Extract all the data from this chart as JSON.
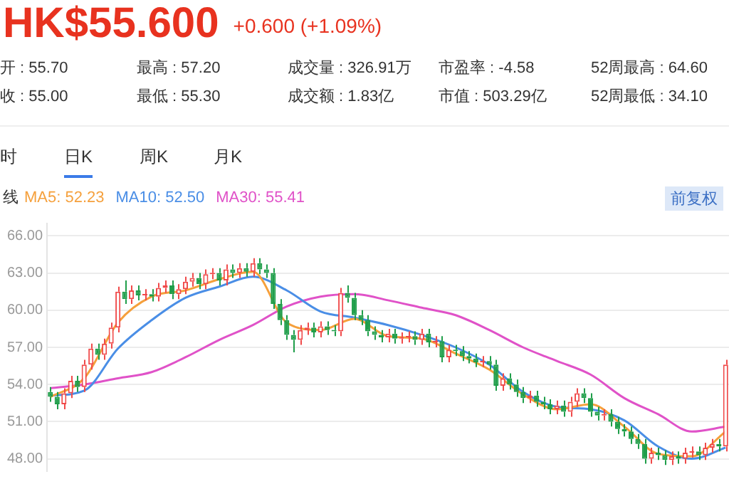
{
  "chart_data": {
    "type": "candlestick",
    "title": "HK$55.600",
    "subtitle": "+0.600 (+1.09%)",
    "annotations": [
      "开 : 55.70",
      "最高 : 57.20",
      "成交量 : 326.91万",
      "市盈率 : -4.58",
      "52周最高 : 64.60",
      "收 : 55.00",
      "最低 : 55.30",
      "成交额 : 1.83亿",
      "市值 : 503.29亿",
      "52周最低 : 34.10",
      "时",
      "日K",
      "周K",
      "月K",
      "前复权"
    ],
    "legend_title": "线",
    "legend": "top left",
    "grid": "y",
    "tick_labels": "y",
    "categories": [
      null,
      null,
      null,
      null,
      null,
      null,
      null,
      null,
      null,
      null,
      null,
      null,
      null,
      null,
      null,
      null,
      null,
      null,
      null,
      null,
      null,
      null,
      null,
      null,
      null,
      null,
      null,
      null,
      null,
      null,
      null,
      null,
      null,
      null,
      null,
      null,
      null,
      null,
      null,
      null,
      null,
      null,
      null,
      null,
      null,
      null,
      null,
      null,
      null,
      null,
      null,
      null,
      null,
      null,
      null,
      null,
      null,
      null,
      null,
      null,
      null,
      null,
      null,
      null,
      null,
      null,
      null,
      null,
      null,
      null,
      null,
      null,
      null,
      null,
      null,
      null,
      null,
      null,
      null,
      null,
      null,
      null,
      null,
      null,
      null,
      null,
      null,
      null,
      null,
      null,
      null,
      null,
      null,
      null,
      null,
      null,
      null,
      null,
      null,
      null,
      null
    ],
    "colors": [
      "#1f9e4a",
      "#1f9e4a",
      "#f04a4a",
      "#f04a4a",
      "#1f9e4a",
      "#f04a4a",
      "#f04a4a",
      "#1f9e4a",
      "#f04a4a",
      "#f04a4a",
      "#f04a4a",
      "#1f9e4a",
      "#f04a4a",
      "#1f9e4a",
      "#f04a4a",
      "#1f9e4a",
      "#f04a4a",
      "#f04a4a",
      "#1f9e4a",
      "#f04a4a",
      "#f04a4a",
      "#f04a4a",
      "#1f9e4a",
      "#f04a4a",
      "#f04a4a",
      "#1f9e4a",
      "#f04a4a",
      "#1f9e4a",
      "#f04a4a",
      "#1f9e4a",
      "#f04a4a",
      "#1f9e4a",
      "#1f9e4a",
      "#1f9e4a",
      "#1f9e4a",
      "#1f9e4a",
      "#1f9e4a",
      "#f04a4a",
      "#f04a4a",
      "#1f9e4a",
      "#f04a4a",
      "#1f9e4a",
      "#1f9e4a",
      "#f04a4a",
      "#1f9e4a",
      "#1f9e4a",
      "#1f9e4a",
      "#1f9e4a",
      "#1f9e4a",
      "#1f9e4a",
      "#f04a4a",
      "#1f9e4a",
      "#f04a4a",
      "#f04a4a",
      "#1f9e4a",
      "#f04a4a",
      "#1f9e4a",
      "#f04a4a",
      "#1f9e4a",
      "#f04a4a",
      "#1f9e4a",
      "#1f9e4a",
      "#1f9e4a",
      "#1f9e4a",
      "#f04a4a",
      "#1f9e4a",
      "#1f9e4a",
      "#f04a4a",
      "#1f9e4a",
      "#1f9e4a",
      "#1f9e4a",
      "#f04a4a",
      "#1f9e4a",
      "#1f9e4a",
      "#1f9e4a",
      "#f04a4a",
      "#1f9e4a",
      "#f04a4a",
      "#f04a4a",
      "#1f9e4a",
      "#1f9e4a",
      "#1f9e4a",
      "#f04a4a",
      "#1f9e4a",
      "#1f9e4a",
      "#1f9e4a",
      "#1f9e4a",
      "#1f9e4a",
      "#1f9e4a",
      "#f04a4a",
      "#1f9e4a",
      "#1f9e4a",
      "#f04a4a",
      "#1f9e4a",
      "#f04a4a",
      "#f04a4a",
      "#1f9e4a",
      "#f04a4a",
      "#f04a4a",
      "#1f9e4a",
      "#f04a4a"
    ],
    "ohlc": [
      [
        53.4,
        53.8,
        52.6,
        53.0
      ],
      [
        53.0,
        53.4,
        52.0,
        52.4
      ],
      [
        52.4,
        53.7,
        52.0,
        53.3
      ],
      [
        53.3,
        54.7,
        52.9,
        54.3
      ],
      [
        54.3,
        54.7,
        53.4,
        53.8
      ],
      [
        53.8,
        56.0,
        53.4,
        55.6
      ],
      [
        55.6,
        57.3,
        55.2,
        56.9
      ],
      [
        56.9,
        57.3,
        56.0,
        56.4
      ],
      [
        56.4,
        57.7,
        56.0,
        57.3
      ],
      [
        57.3,
        59.0,
        56.9,
        58.6
      ],
      [
        58.6,
        61.9,
        58.2,
        61.5
      ],
      [
        61.5,
        62.4,
        60.5,
        60.9
      ],
      [
        60.9,
        62.0,
        60.5,
        61.6
      ],
      [
        61.6,
        62.0,
        60.8,
        61.2
      ],
      [
        61.2,
        61.7,
        60.8,
        61.3
      ],
      [
        61.3,
        61.7,
        60.7,
        61.1
      ],
      [
        61.1,
        62.2,
        60.7,
        61.8
      ],
      [
        61.8,
        62.4,
        61.4,
        62.0
      ],
      [
        62.0,
        62.4,
        60.9,
        61.3
      ],
      [
        61.3,
        62.1,
        60.9,
        61.7
      ],
      [
        61.7,
        62.7,
        61.3,
        62.3
      ],
      [
        62.3,
        63.0,
        61.9,
        62.6
      ],
      [
        62.6,
        63.0,
        61.7,
        62.1
      ],
      [
        62.1,
        63.3,
        61.7,
        62.9
      ],
      [
        62.9,
        63.4,
        62.5,
        63.0
      ],
      [
        63.0,
        63.4,
        62.0,
        62.4
      ],
      [
        62.4,
        63.7,
        62.0,
        63.3
      ],
      [
        63.3,
        63.7,
        62.6,
        63.0
      ],
      [
        63.0,
        63.8,
        62.6,
        63.4
      ],
      [
        63.4,
        63.8,
        62.7,
        63.1
      ],
      [
        63.1,
        64.2,
        62.7,
        63.8
      ],
      [
        63.8,
        64.2,
        62.9,
        63.3
      ],
      [
        63.3,
        63.7,
        62.6,
        63.0
      ],
      [
        63.0,
        63.4,
        60.1,
        60.5
      ],
      [
        60.5,
        60.9,
        58.8,
        59.2
      ],
      [
        59.2,
        59.6,
        57.6,
        58.0
      ],
      [
        58.0,
        58.4,
        56.6,
        57.6
      ],
      [
        57.6,
        58.8,
        57.2,
        58.4
      ],
      [
        58.4,
        59.0,
        58.0,
        58.6
      ],
      [
        58.6,
        59.0,
        57.8,
        58.2
      ],
      [
        58.2,
        59.1,
        57.8,
        58.7
      ],
      [
        58.7,
        59.1,
        58.0,
        58.4
      ],
      [
        58.4,
        58.8,
        57.9,
        58.3
      ],
      [
        58.3,
        61.8,
        57.9,
        61.4
      ],
      [
        61.4,
        62.0,
        60.6,
        61.0
      ],
      [
        61.0,
        61.4,
        59.2,
        59.6
      ],
      [
        59.6,
        60.0,
        58.8,
        59.2
      ],
      [
        59.2,
        59.6,
        57.9,
        58.3
      ],
      [
        58.3,
        58.7,
        57.6,
        58.0
      ],
      [
        58.0,
        58.4,
        57.4,
        57.8
      ],
      [
        57.8,
        58.5,
        57.4,
        58.1
      ],
      [
        58.1,
        58.5,
        57.3,
        57.7
      ],
      [
        57.7,
        58.2,
        57.3,
        57.8
      ],
      [
        57.8,
        58.3,
        57.4,
        57.9
      ],
      [
        57.9,
        58.3,
        57.2,
        57.6
      ],
      [
        57.6,
        58.5,
        57.2,
        58.1
      ],
      [
        58.1,
        58.5,
        57.0,
        57.4
      ],
      [
        57.4,
        57.9,
        57.0,
        57.5
      ],
      [
        57.5,
        57.9,
        55.8,
        56.2
      ],
      [
        56.2,
        57.2,
        55.8,
        56.8
      ],
      [
        56.8,
        57.2,
        56.3,
        56.7
      ],
      [
        56.7,
        57.1,
        55.9,
        56.3
      ],
      [
        56.3,
        56.7,
        55.7,
        56.1
      ],
      [
        56.1,
        56.5,
        55.4,
        55.8
      ],
      [
        55.8,
        56.3,
        55.4,
        55.9
      ],
      [
        55.9,
        56.3,
        55.2,
        55.6
      ],
      [
        55.6,
        56.0,
        53.5,
        53.9
      ],
      [
        53.9,
        54.9,
        53.5,
        54.5
      ],
      [
        54.5,
        54.9,
        53.6,
        54.0
      ],
      [
        54.0,
        54.4,
        53.0,
        53.4
      ],
      [
        53.4,
        53.8,
        52.5,
        52.9
      ],
      [
        52.9,
        53.5,
        52.5,
        53.1
      ],
      [
        53.1,
        53.5,
        52.2,
        52.6
      ],
      [
        52.6,
        53.0,
        52.0,
        52.4
      ],
      [
        52.4,
        52.8,
        51.6,
        52.0
      ],
      [
        52.0,
        52.7,
        51.6,
        52.3
      ],
      [
        52.3,
        52.7,
        51.4,
        51.8
      ],
      [
        51.8,
        53.0,
        51.4,
        52.6
      ],
      [
        52.6,
        53.7,
        52.2,
        53.3
      ],
      [
        53.3,
        53.7,
        52.5,
        52.9
      ],
      [
        52.9,
        53.3,
        51.4,
        51.8
      ],
      [
        51.8,
        52.2,
        51.1,
        51.5
      ],
      [
        51.5,
        52.0,
        51.1,
        51.6
      ],
      [
        51.6,
        52.0,
        50.6,
        51.0
      ],
      [
        51.0,
        51.4,
        50.0,
        50.4
      ],
      [
        50.4,
        50.8,
        49.8,
        50.2
      ],
      [
        50.2,
        50.6,
        49.2,
        49.6
      ],
      [
        49.6,
        50.0,
        48.8,
        49.2
      ],
      [
        49.2,
        49.6,
        47.6,
        48.0
      ],
      [
        48.0,
        48.9,
        47.6,
        48.5
      ],
      [
        48.5,
        48.9,
        47.9,
        48.3
      ],
      [
        48.3,
        48.7,
        47.5,
        47.9
      ],
      [
        47.9,
        48.6,
        47.5,
        48.2
      ],
      [
        48.2,
        48.6,
        47.6,
        48.0
      ],
      [
        48.0,
        48.9,
        47.6,
        48.5
      ],
      [
        48.5,
        49.0,
        48.1,
        48.6
      ],
      [
        48.6,
        49.0,
        47.9,
        48.3
      ],
      [
        48.3,
        49.3,
        47.9,
        48.9
      ],
      [
        48.9,
        49.6,
        48.5,
        49.2
      ],
      [
        49.2,
        49.6,
        48.6,
        49.0
      ],
      [
        49.0,
        56.0,
        48.6,
        55.6
      ]
    ],
    "series": [
      {
        "type": "line",
        "name": "MA5: 52.23",
        "color": "#f5a03c",
        "values": [
          53.0,
          null,
          null,
          null,
          null,
          54.5,
          null,
          null,
          null,
          null,
          59.0,
          null,
          null,
          null,
          null,
          61.1,
          null,
          null,
          null,
          null,
          61.6,
          null,
          null,
          null,
          null,
          62.5,
          null,
          null,
          null,
          null,
          63.1,
          null,
          null,
          null,
          null,
          59.0,
          null,
          null,
          null,
          null,
          58.4,
          null,
          null,
          null,
          null,
          59.3,
          null,
          null,
          null,
          null,
          57.9,
          null,
          null,
          null,
          null,
          57.7,
          null,
          null,
          null,
          null,
          56.5,
          null,
          null,
          null,
          null,
          55.2,
          null,
          null,
          null,
          null,
          53.2,
          null,
          null,
          null,
          null,
          52.0,
          null,
          null,
          null,
          null,
          52.4,
          null,
          null,
          null,
          null,
          50.6,
          null,
          null,
          null,
          null,
          48.4,
          null,
          null,
          null,
          null,
          48.2,
          null,
          null,
          null,
          null,
          50.2
        ]
      },
      {
        "type": "line",
        "name": "MA10: 52.50",
        "color": "#4a8ee6",
        "values": [
          53.1,
          null,
          null,
          null,
          null,
          53.5,
          null,
          null,
          null,
          null,
          56.9,
          null,
          null,
          null,
          null,
          59.2,
          null,
          null,
          null,
          null,
          61.0,
          null,
          null,
          null,
          null,
          61.9,
          null,
          null,
          null,
          null,
          62.7,
          null,
          null,
          null,
          null,
          61.6,
          null,
          null,
          null,
          null,
          59.9,
          null,
          null,
          null,
          null,
          59.4,
          null,
          null,
          null,
          null,
          58.8,
          null,
          null,
          null,
          null,
          58.0,
          null,
          null,
          null,
          null,
          57.0,
          null,
          null,
          null,
          null,
          55.6,
          null,
          null,
          null,
          null,
          53.4,
          null,
          null,
          null,
          null,
          52.2,
          null,
          null,
          null,
          null,
          52.0,
          null,
          null,
          null,
          null,
          51.1,
          null,
          null,
          null,
          null,
          49.0,
          null,
          null,
          null,
          null,
          48.0,
          null,
          null,
          null,
          null,
          48.9
        ]
      },
      {
        "type": "line",
        "name": "MA30: 55.41",
        "color": "#e052c8",
        "values": [
          53.7,
          null,
          null,
          null,
          null,
          54.0,
          null,
          null,
          null,
          null,
          54.5,
          null,
          null,
          null,
          null,
          55.0,
          null,
          null,
          null,
          null,
          56.2,
          null,
          null,
          null,
          null,
          57.6,
          null,
          null,
          null,
          null,
          58.8,
          null,
          null,
          null,
          null,
          60.3,
          null,
          null,
          null,
          null,
          61.1,
          null,
          null,
          null,
          null,
          61.3,
          null,
          null,
          null,
          null,
          60.8,
          null,
          null,
          null,
          null,
          60.2,
          null,
          null,
          null,
          null,
          59.6,
          null,
          null,
          null,
          null,
          58.4,
          null,
          null,
          null,
          null,
          57.0,
          null,
          null,
          null,
          null,
          55.9,
          null,
          null,
          null,
          null,
          54.8,
          null,
          null,
          null,
          null,
          52.9,
          null,
          null,
          null,
          null,
          51.6,
          null,
          null,
          null,
          null,
          50.2,
          null,
          null,
          null,
          null,
          50.6
        ]
      }
    ],
    "ylim": [
      47,
      67
    ],
    "yticks": [
      {
        "value": 66,
        "label": "66.00"
      },
      {
        "value": 63,
        "label": "63.00"
      },
      {
        "value": 60,
        "label": "60.00"
      },
      {
        "value": 57,
        "label": "57.00"
      },
      {
        "value": 54,
        "label": "54.00"
      },
      {
        "value": 51,
        "label": "51.00"
      },
      {
        "value": 48,
        "label": "48.00"
      }
    ]
  }
}
